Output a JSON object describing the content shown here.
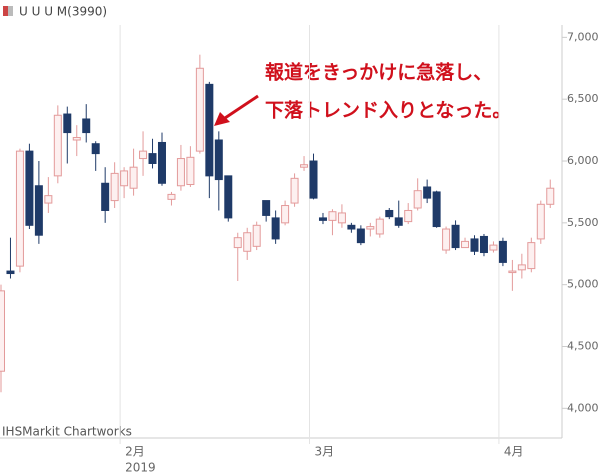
{
  "chart_data": {
    "type": "candlestick",
    "title": "U U U M(3990)",
    "source": "IHSMarkit Chartworks",
    "annotations": [
      "報道をきっかけに急落し、",
      "下落トレンド入りとなった。"
    ],
    "year_label": "2019",
    "categories": [
      null,
      null,
      null,
      null,
      null,
      null,
      null,
      null,
      null,
      null,
      null,
      null,
      null,
      "2月",
      null,
      null,
      null,
      null,
      null,
      null,
      null,
      null,
      null,
      null,
      null,
      null,
      null,
      null,
      null,
      null,
      null,
      null,
      null,
      "3月",
      null,
      null,
      null,
      null,
      null,
      null,
      null,
      null,
      null,
      null,
      null,
      null,
      null,
      null,
      null,
      null,
      null,
      null,
      null,
      "4月",
      null,
      null,
      null,
      null,
      null
    ],
    "open": [
      4300,
      5110,
      5150,
      6080,
      5800,
      5660,
      5880,
      6380,
      6170,
      6340,
      6140,
      5820,
      5680,
      5800,
      5780,
      6020,
      6060,
      6150,
      5690,
      5800,
      5810,
      6080,
      6620,
      6170,
      5880,
      5300,
      5270,
      5310,
      5680,
      5540,
      5500,
      5660,
      5950,
      6000,
      5540,
      5520,
      5500,
      5480,
      5450,
      5450,
      5410,
      5600,
      5540,
      5510,
      5620,
      5790,
      5750,
      5280,
      5480,
      5300,
      5370,
      5390,
      5280,
      5350,
      5100,
      5120,
      5130,
      5370,
      5650
    ],
    "high": [
      5000,
      5380,
      6100,
      6140,
      6000,
      5870,
      6450,
      6440,
      6290,
      6460,
      6160,
      5950,
      5990,
      5950,
      6100,
      6240,
      6180,
      6230,
      5750,
      6130,
      6120,
      6860,
      6640,
      6240,
      5880,
      5420,
      5460,
      5510,
      5680,
      5600,
      5680,
      5900,
      6040,
      6060,
      5580,
      5610,
      5650,
      5500,
      5480,
      5500,
      5550,
      5620,
      5680,
      5660,
      5860,
      5850,
      5760,
      5470,
      5520,
      5380,
      5400,
      5410,
      5350,
      5380,
      5200,
      5250,
      5380,
      5680,
      5850
    ],
    "low": [
      4130,
      5050,
      5100,
      5450,
      5330,
      5580,
      5820,
      5980,
      6040,
      6150,
      5920,
      5500,
      5620,
      5700,
      5720,
      5880,
      5940,
      5800,
      5640,
      5760,
      5790,
      6060,
      5700,
      5600,
      5510,
      5030,
      5200,
      5280,
      5510,
      5330,
      5480,
      5630,
      5920,
      5690,
      5490,
      5400,
      5460,
      5420,
      5320,
      5390,
      5380,
      5530,
      5460,
      5490,
      5600,
      5660,
      5460,
      5250,
      5280,
      5300,
      5240,
      5230,
      5260,
      5150,
      4950,
      5050,
      5100,
      5330,
      5620
    ],
    "close": [
      4950,
      5090,
      6080,
      5480,
      5400,
      5720,
      6370,
      6230,
      6190,
      6230,
      6060,
      5600,
      5900,
      5920,
      5950,
      6080,
      5980,
      5820,
      5730,
      6020,
      6030,
      6750,
      5880,
      5850,
      5540,
      5380,
      5420,
      5480,
      5560,
      5370,
      5640,
      5860,
      5970,
      5700,
      5520,
      5590,
      5580,
      5450,
      5340,
      5470,
      5530,
      5550,
      5480,
      5600,
      5760,
      5700,
      5470,
      5450,
      5300,
      5350,
      5270,
      5260,
      5320,
      5180,
      5110,
      5160,
      5340,
      5650,
      5780
    ],
    "up_color": "#e39a9a",
    "down_color": "#1f3a68",
    "ylim": [
      3760,
      7100
    ],
    "yticks": [
      {
        "value": 4000,
        "label": "4,000"
      },
      {
        "value": 4500,
        "label": "4,500"
      },
      {
        "value": 5000,
        "label": "5,000"
      },
      {
        "value": 5500,
        "label": "5,500"
      },
      {
        "value": 6000,
        "label": "6,000"
      },
      {
        "value": 6500,
        "label": "6,500"
      },
      {
        "value": 7000,
        "label": "7,000"
      }
    ]
  }
}
